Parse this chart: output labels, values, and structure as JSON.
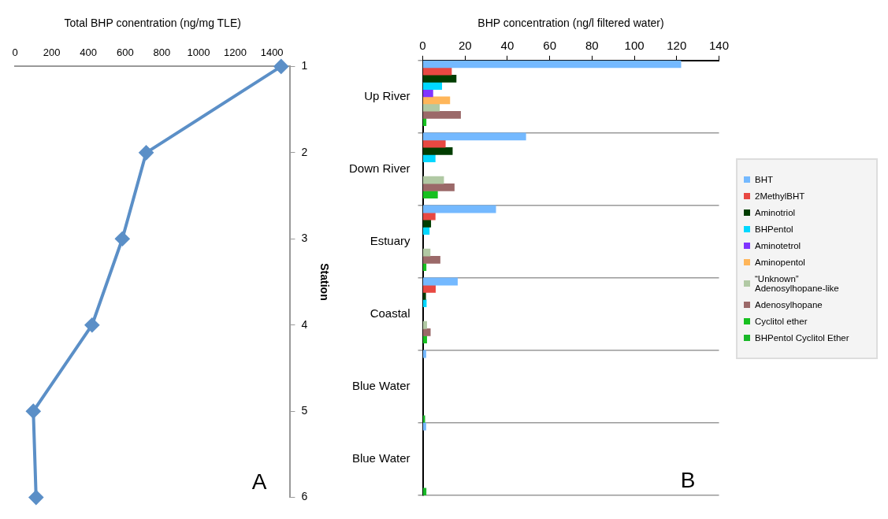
{
  "chart_data": [
    {
      "type": "line",
      "xlabel": "Total BHP conentration (ng/mg TLE)",
      "ylabel": "Station",
      "marker": "diamond",
      "xlim": [
        0,
        1500
      ],
      "xticks": [
        0,
        200,
        400,
        600,
        800,
        1000,
        1200,
        1400
      ],
      "ylim": [
        6,
        1
      ],
      "yticks": [
        1,
        2,
        3,
        4,
        5,
        6
      ],
      "annotations": [
        "A"
      ],
      "series": [
        {
          "color": "#5b8fc7",
          "x": [
            1450,
            715,
            585,
            420,
            100,
            115
          ],
          "values": [
            1,
            2,
            3,
            4,
            5,
            6
          ]
        }
      ]
    },
    {
      "type": "bar",
      "orientation": "horizontal",
      "xlabel": "BHP concentration (ng/l filtered water)",
      "xlim": [
        0,
        140
      ],
      "xticks": [
        0,
        20,
        40,
        60,
        80,
        100,
        120,
        140
      ],
      "grid": "y",
      "legend": "right",
      "annotations": [
        "B"
      ],
      "categories": [
        "Up River",
        "Down River",
        "Estuary",
        "Coastal",
        "Blue Water",
        "Blue Water"
      ],
      "series": [
        {
          "name": "BHT",
          "color": "#74b9ff",
          "values": [
            122,
            48.7,
            34.5,
            16.4,
            1.5,
            1.5
          ]
        },
        {
          "name": "2MethylBHT",
          "color": "#e84842",
          "values": [
            13.6,
            10.7,
            5.9,
            6.0,
            null,
            null
          ]
        },
        {
          "name": "Aminotriol",
          "color": "#003d00",
          "values": [
            15.8,
            14.0,
            3.8,
            1.4,
            null,
            null
          ]
        },
        {
          "name": "BHPentol",
          "color": "#00d8ff",
          "values": [
            9.0,
            5.9,
            3.1,
            1.7,
            null,
            null
          ]
        },
        {
          "name": "Aminotetrol",
          "color": "#8035ff",
          "values": [
            4.8,
            null,
            null,
            null,
            null,
            null
          ]
        },
        {
          "name": "Aminopentol",
          "color": "#ffb65a",
          "values": [
            12.8,
            null,
            null,
            null,
            null,
            null
          ]
        },
        {
          "name": "“Unknown” Adenosylhopane-like",
          "color": "#b1c9a4",
          "values": [
            7.9,
            9.9,
            3.5,
            1.9,
            null,
            null
          ]
        },
        {
          "name": "Adenosylhopane",
          "color": "#9b6969",
          "values": [
            17.9,
            14.9,
            8.2,
            3.6,
            null,
            null
          ]
        },
        {
          "name": "Cyclitol ether",
          "color": "#17c020",
          "values": [
            1.6,
            7.0,
            1.6,
            1.9,
            null,
            null
          ]
        },
        {
          "name": "BHPentol Cyclitol Ether",
          "color": "#19b828",
          "values": [
            null,
            null,
            null,
            null,
            1.0,
            1.6
          ]
        }
      ]
    }
  ]
}
